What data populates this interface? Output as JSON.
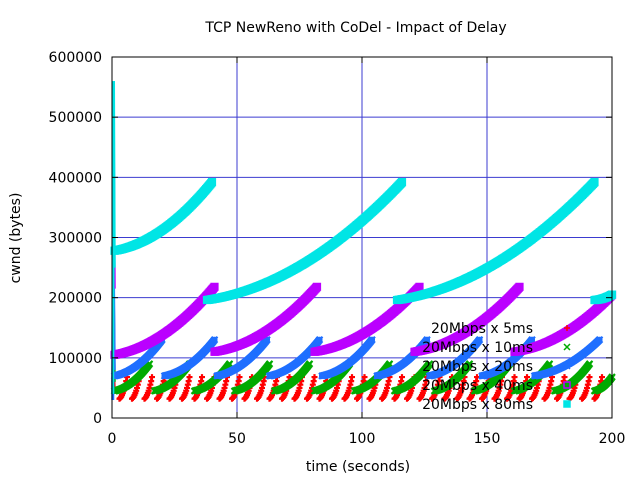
{
  "chart_data": {
    "type": "scatter",
    "title": "TCP NewReno with CoDel - Impact of Delay",
    "xlabel": "time (seconds)",
    "ylabel": "cwnd (bytes)",
    "xlim": [
      0,
      200
    ],
    "ylim": [
      0,
      600000
    ],
    "xticks": [
      "0",
      "50",
      "100",
      "150",
      "200"
    ],
    "yticks": [
      "0",
      "100000",
      "200000",
      "300000",
      "400000",
      "500000",
      "600000"
    ],
    "grid": true,
    "legend_position": "bottom-right, inside",
    "series": [
      {
        "name": "20Mbps x 5ms",
        "marker": "+",
        "color": "#ff0000",
        "initial_spike": [
          [
            0.3,
            60000
          ],
          [
            0.6,
            95000
          ],
          [
            0.9,
            40000
          ]
        ],
        "segments": [
          [
            [
              3,
              32000
            ],
            [
              6,
              68000
            ]
          ],
          [
            [
              8,
              32000
            ],
            [
              11,
              68000
            ]
          ],
          [
            [
              13,
              32000
            ],
            [
              16,
              68000
            ]
          ],
          [
            [
              18,
              32000
            ],
            [
              21,
              68000
            ]
          ],
          [
            [
              23,
              32000
            ],
            [
              26,
              68000
            ]
          ],
          [
            [
              28,
              32000
            ],
            [
              31,
              68000
            ]
          ],
          [
            [
              33,
              32000
            ],
            [
              36,
              68000
            ]
          ],
          [
            [
              38,
              32000
            ],
            [
              41,
              68000
            ]
          ],
          [
            [
              43,
              32000
            ],
            [
              46,
              68000
            ]
          ],
          [
            [
              48,
              32000
            ],
            [
              51,
              68000
            ]
          ],
          [
            [
              53,
              32000
            ],
            [
              56,
              68000
            ]
          ],
          [
            [
              58,
              32000
            ],
            [
              61,
              68000
            ]
          ],
          [
            [
              63,
              32000
            ],
            [
              66,
              68000
            ]
          ],
          [
            [
              68,
              32000
            ],
            [
              71,
              68000
            ]
          ],
          [
            [
              73,
              32000
            ],
            [
              76,
              68000
            ]
          ],
          [
            [
              78,
              32000
            ],
            [
              81,
              68000
            ]
          ],
          [
            [
              83,
              32000
            ],
            [
              86,
              68000
            ]
          ],
          [
            [
              88,
              32000
            ],
            [
              91,
              68000
            ]
          ],
          [
            [
              93,
              32000
            ],
            [
              96,
              68000
            ]
          ],
          [
            [
              98,
              32000
            ],
            [
              101,
              68000
            ]
          ],
          [
            [
              103,
              32000
            ],
            [
              106,
              68000
            ]
          ],
          [
            [
              108,
              32000
            ],
            [
              111,
              68000
            ]
          ],
          [
            [
              113,
              32000
            ],
            [
              116,
              68000
            ]
          ],
          [
            [
              118,
              32000
            ],
            [
              121,
              68000
            ]
          ],
          [
            [
              123,
              32000
            ],
            [
              126,
              68000
            ]
          ],
          [
            [
              128,
              32000
            ],
            [
              131,
              68000
            ]
          ],
          [
            [
              133,
              32000
            ],
            [
              136,
              68000
            ]
          ],
          [
            [
              138,
              32000
            ],
            [
              141,
              68000
            ]
          ],
          [
            [
              143,
              32000
            ],
            [
              146,
              68000
            ]
          ],
          [
            [
              148,
              32000
            ],
            [
              151,
              68000
            ]
          ],
          [
            [
              153,
              32000
            ],
            [
              156,
              68000
            ]
          ],
          [
            [
              158,
              32000
            ],
            [
              161,
              68000
            ]
          ],
          [
            [
              163,
              32000
            ],
            [
              166,
              68000
            ]
          ],
          [
            [
              168,
              32000
            ],
            [
              171,
              68000
            ]
          ],
          [
            [
              173,
              32000
            ],
            [
              176,
              68000
            ]
          ],
          [
            [
              178,
              32000
            ],
            [
              181,
              68000
            ]
          ],
          [
            [
              183,
              32000
            ],
            [
              186,
              68000
            ]
          ],
          [
            [
              188,
              32000
            ],
            [
              191,
              68000
            ]
          ],
          [
            [
              193,
              32000
            ],
            [
              196,
              68000
            ]
          ]
        ]
      },
      {
        "name": "20Mbps x 10ms",
        "marker": "x",
        "color": "#00aa00",
        "initial_spike": [
          [
            0.3,
            40000
          ],
          [
            0.6,
            185000
          ],
          [
            0.9,
            60000
          ]
        ],
        "segments": [
          [
            [
              1,
              45000
            ],
            [
              15,
              90000
            ]
          ],
          [
            [
              17,
              45000
            ],
            [
              31,
              90000
            ]
          ],
          [
            [
              33,
              45000
            ],
            [
              47,
              90000
            ]
          ],
          [
            [
              49,
              45000
            ],
            [
              63,
              90000
            ]
          ],
          [
            [
              65,
              45000
            ],
            [
              79,
              90000
            ]
          ],
          [
            [
              81,
              45000
            ],
            [
              95,
              90000
            ]
          ],
          [
            [
              97,
              45000
            ],
            [
              111,
              90000
            ]
          ],
          [
            [
              113,
              45000
            ],
            [
              127,
              90000
            ]
          ],
          [
            [
              129,
              45000
            ],
            [
              143,
              90000
            ]
          ],
          [
            [
              145,
              45000
            ],
            [
              159,
              90000
            ]
          ],
          [
            [
              161,
              45000
            ],
            [
              175,
              90000
            ]
          ],
          [
            [
              177,
              45000
            ],
            [
              191,
              90000
            ]
          ],
          [
            [
              193,
              45000
            ],
            [
              200,
              68000
            ]
          ]
        ]
      },
      {
        "name": "20Mbps x 20ms",
        "marker": "*",
        "color": "#1f6fff",
        "initial_spike": [
          [
            0.3,
            30000
          ],
          [
            0.6,
            230000
          ],
          [
            0.9,
            80000
          ]
        ],
        "segments": [
          [
            [
              1,
              70000
            ],
            [
              20,
              130000
            ]
          ],
          [
            [
              21,
              70000
            ],
            [
              41,
              130000
            ]
          ],
          [
            [
              42,
              70000
            ],
            [
              62,
              130000
            ]
          ],
          [
            [
              63,
              70000
            ],
            [
              83,
              130000
            ]
          ],
          [
            [
              84,
              70000
            ],
            [
              104,
              130000
            ]
          ],
          [
            [
              106,
              70000
            ],
            [
              126,
              130000
            ]
          ],
          [
            [
              127,
              70000
            ],
            [
              147,
              130000
            ]
          ],
          [
            [
              148,
              70000
            ],
            [
              168,
              130000
            ]
          ],
          [
            [
              169,
              70000
            ],
            [
              195,
              130000
            ]
          ]
        ]
      },
      {
        "name": "20Mbps x 40ms",
        "marker": "square",
        "color": "#bb00ff",
        "initial_spike": [
          [
            0.3,
            50000
          ],
          [
            0.6,
            435000
          ],
          [
            0.9,
            215000
          ]
        ],
        "segments": [
          [
            [
              1,
              105000
            ],
            [
              41,
              218000
            ]
          ],
          [
            [
              41,
              110000
            ],
            [
              82,
              218000
            ]
          ],
          [
            [
              81,
              110000
            ],
            [
              123,
              218000
            ]
          ],
          [
            [
              121,
              110000
            ],
            [
              163,
              218000
            ]
          ],
          [
            [
              161,
              110000
            ],
            [
              200,
              205000
            ]
          ]
        ]
      },
      {
        "name": "20Mbps x 80ms",
        "marker": "filled-square",
        "color": "#00e5e5",
        "initial_spike": [
          [
            0.3,
            40000
          ],
          [
            0.6,
            560000
          ],
          [
            0.9,
            250000
          ]
        ],
        "segments": [
          [
            [
              1,
              278000
            ],
            [
              40,
              392000
            ]
          ],
          [
            [
              38,
              196000
            ],
            [
              116,
              392000
            ]
          ],
          [
            [
              114,
              196000
            ],
            [
              193,
              392000
            ]
          ],
          [
            [
              193,
              196000
            ],
            [
              200,
              205000
            ]
          ]
        ]
      }
    ]
  }
}
